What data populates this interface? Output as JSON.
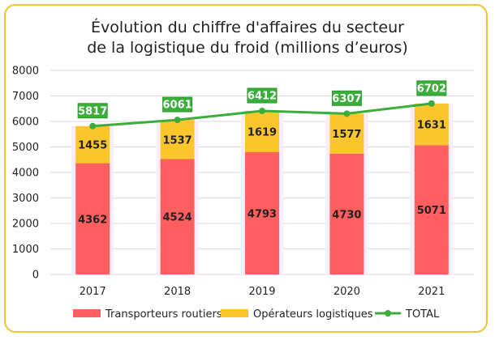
{
  "chart_data": {
    "type": "bar",
    "title_line1": "Évolution du chiffre d'affaires du secteur",
    "title_line2": "de la logistique du froid (millions d’euros)",
    "categories": [
      "2017",
      "2018",
      "2019",
      "2020",
      "2021"
    ],
    "ylim": [
      0,
      8000
    ],
    "yticks": [
      "0",
      "1000",
      "2000",
      "3000",
      "4000",
      "5000",
      "6000",
      "7000",
      "8000"
    ],
    "series": [
      {
        "name": "Transporteurs routiers",
        "kind": "stacked-bar",
        "color": "#ff5f5f",
        "values": [
          4362,
          4524,
          4793,
          4730,
          5071
        ]
      },
      {
        "name": "Opérateurs logistiques",
        "kind": "stacked-bar",
        "color": "#fbc62c",
        "values": [
          1455,
          1537,
          1619,
          1577,
          1631
        ]
      },
      {
        "name": "TOTAL",
        "kind": "line",
        "color": "#3aad3a",
        "values": [
          5817,
          6061,
          6412,
          6307,
          6702
        ]
      }
    ],
    "legend_position": "bottom",
    "grid": true,
    "border_color": "#f3c230"
  }
}
